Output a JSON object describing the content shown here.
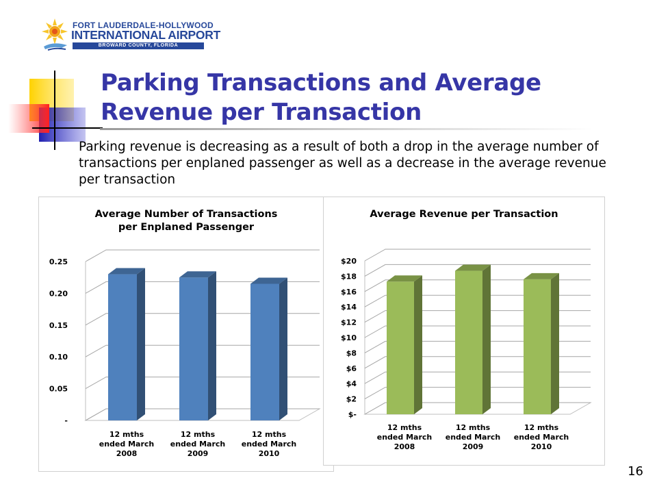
{
  "logo": {
    "line1": "FORT LAUDERDALE-HOLLYWOOD",
    "line2": "INTERNATIONAL AIRPORT",
    "line3": "BROWARD COUNTY, FLORIDA",
    "icon": "sun-plane-logo-icon"
  },
  "title": "Parking Transactions and Average Revenue per Transaction",
  "body": "Parking revenue is decreasing as a result of both a drop in the average number of transactions per enplaned passenger as well as a decrease in the average revenue per transaction",
  "page_number": "16",
  "colors": {
    "title": "#3636a6",
    "bar_blue": "#4f81bd",
    "bar_green": "#9bbb59"
  },
  "chart_data": [
    {
      "type": "bar",
      "title": [
        "Average Number of Transactions",
        "per Enplaned Passenger"
      ],
      "categories": [
        [
          "12 mths",
          "ended March",
          "2008"
        ],
        [
          "12 mths",
          "ended March",
          "2009"
        ],
        [
          "12 mths",
          "ended March",
          "2010"
        ]
      ],
      "values": [
        0.23,
        0.225,
        0.215
      ],
      "yticks": [
        "-",
        "0.05",
        "0.10",
        "0.15",
        "0.20",
        "0.25"
      ],
      "ylim": [
        0,
        0.25
      ],
      "grid": true,
      "style": "3d",
      "color": "#4f81bd"
    },
    {
      "type": "bar",
      "title": [
        "Average Revenue per Transaction"
      ],
      "categories": [
        [
          "12 mths",
          "ended March",
          "2008"
        ],
        [
          "12 mths",
          "ended March",
          "2009"
        ],
        [
          "12 mths",
          "ended March",
          "2010"
        ]
      ],
      "values": [
        17.3,
        18.7,
        17.6
      ],
      "yticks": [
        "$-",
        "$2",
        "$4",
        "$6",
        "$8",
        "$10",
        "$12",
        "$14",
        "$16",
        "$18",
        "$20"
      ],
      "ylim": [
        0,
        20
      ],
      "grid": true,
      "style": "3d",
      "color": "#9bbb59"
    }
  ]
}
